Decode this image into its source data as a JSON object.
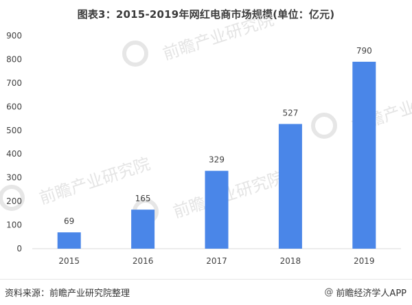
{
  "page": {
    "title": "图表3：2015-2019年网红电商市场规模(单位：亿元)",
    "source": "资料来源：前瞻产业研究院整理",
    "brand": {
      "symbol": "@",
      "label": "前瞻经济学人APP"
    },
    "watermark": "前瞻产业研究院"
  },
  "colors": {
    "bar": "#4a86e8",
    "axis": "#d9d9d9",
    "text": "#404040",
    "watermark": "#dcdcdc"
  },
  "chart_data": {
    "type": "bar",
    "title": "图表3：2015-2019年网红电商市场规模(单位：亿元)",
    "categories": [
      "2015",
      "2016",
      "2017",
      "2018",
      "2019"
    ],
    "values": [
      69,
      165,
      329,
      527,
      790
    ],
    "ylim": [
      0,
      900
    ],
    "yticks": [
      0,
      100,
      200,
      300,
      400,
      500,
      600,
      700,
      800,
      900
    ],
    "xlabel": "",
    "ylabel": "",
    "grid": false,
    "legend": "none",
    "data_labels": true
  }
}
